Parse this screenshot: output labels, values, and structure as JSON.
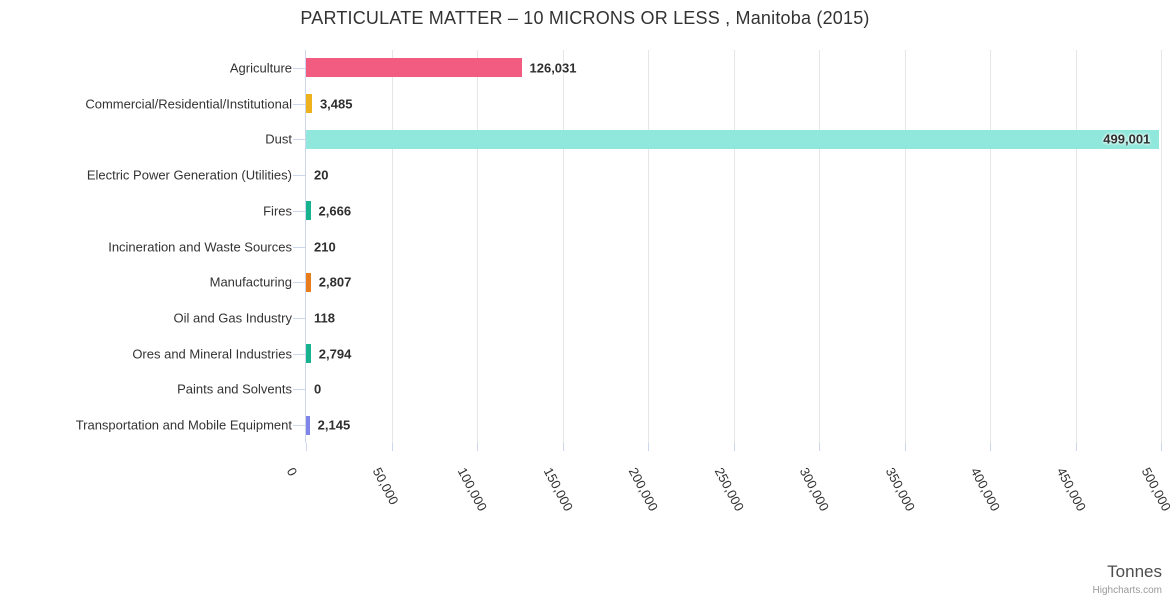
{
  "chart_data": {
    "type": "bar",
    "title": "PARTICULATE MATTER – 10 MICRONS OR LESS , Manitoba (2015)",
    "categories": [
      "Agriculture",
      "Commercial/Residential/Institutional",
      "Dust",
      "Electric Power Generation (Utilities)",
      "Fires",
      "Incineration and Waste Sources",
      "Manufacturing",
      "Oil and Gas Industry",
      "Ores and Mineral Industries",
      "Paints and Solvents",
      "Transportation and Mobile Equipment"
    ],
    "values": [
      126031,
      3485,
      499001,
      20,
      2666,
      210,
      2807,
      118,
      2794,
      0,
      2145
    ],
    "value_labels": [
      "126,031",
      "3,485",
      "499,001",
      "20",
      "2,666",
      "210",
      "2,807",
      "118",
      "2,794",
      "0",
      "2,145"
    ],
    "bar_colors": [
      "#f15c80",
      "#edb21e",
      "#8fe8db",
      null,
      "#17b28e",
      null,
      "#e87d1e",
      null,
      "#17b28e",
      null,
      "#8085e9"
    ],
    "xlabel": "Tonnes",
    "xlim": [
      0,
      500000
    ],
    "ticks": {
      "values": [
        0,
        50000,
        100000,
        150000,
        200000,
        250000,
        300000,
        350000,
        400000,
        450000,
        500000
      ],
      "labels": [
        "0",
        "50,000",
        "100,000",
        "150,000",
        "200,000",
        "250,000",
        "300,000",
        "350,000",
        "400,000",
        "450,000",
        "500,000"
      ]
    },
    "grid": true,
    "legend": "none",
    "credits": "Highcharts.com",
    "colors": {
      "axis_line": "#ccd6eb",
      "gridline": "#e6e6e6",
      "title_text": "#333333",
      "category_text": "#333333",
      "value_text": "#2f2f2f",
      "axis_title_text": "#4d4d4d",
      "credits_text": "#999999"
    }
  }
}
